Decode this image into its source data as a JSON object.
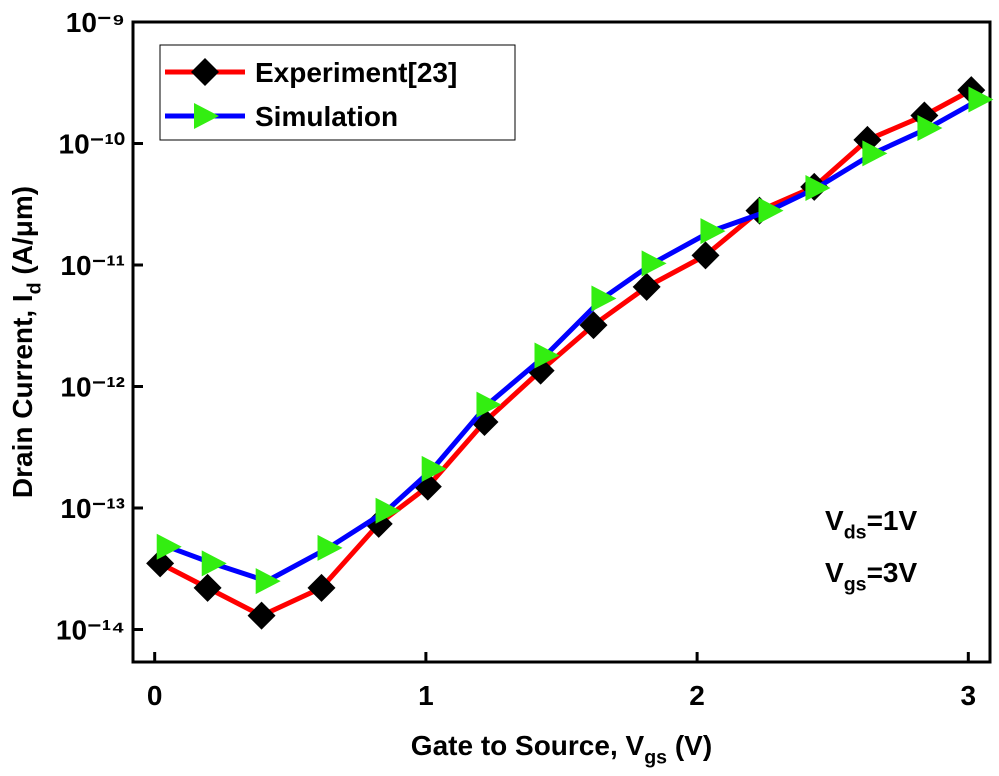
{
  "chart_data": {
    "type": "line",
    "x_label": [
      "Gate to Source, V",
      "gs",
      " (V)"
    ],
    "y_label": [
      "Drain Current, I",
      "d",
      " (A/μm)"
    ],
    "annotations": [
      [
        "V",
        "ds",
        "=1V"
      ],
      [
        "V",
        "gs",
        "=3V"
      ]
    ],
    "log_y": true,
    "legend": "top-left",
    "xlim": [
      -0.08,
      3.08
    ],
    "ylim": [
      5.4e-15,
      1e-09
    ],
    "xticks": [
      0,
      1,
      2,
      3
    ],
    "yticks": [
      {
        "value": 1e-14,
        "label": "10⁻¹⁴"
      },
      {
        "value": 1e-13,
        "label": "10⁻¹³"
      },
      {
        "value": 1e-12,
        "label": "10⁻¹²"
      },
      {
        "value": 1e-11,
        "label": "10⁻¹¹"
      },
      {
        "value": 1e-10,
        "label": "10⁻¹⁰"
      },
      {
        "value": 1e-09,
        "label": "10⁻⁹"
      }
    ],
    "series": [
      {
        "name": "Experiment[23]",
        "color": "#ff0000",
        "marker_color": "#000000",
        "marker": "diamond",
        "x": [
          0.02,
          0.195,
          0.394,
          0.615,
          0.826,
          1.007,
          1.216,
          1.423,
          1.618,
          1.814,
          2.031,
          2.23,
          2.432,
          2.628,
          2.838,
          3.011
        ],
        "values": [
          3.5e-14,
          2.2e-14,
          1.3e-14,
          2.2e-14,
          7.4e-14,
          1.5e-13,
          5.1e-13,
          1.35e-12,
          3.2e-12,
          6.6e-12,
          1.2e-11,
          2.8e-11,
          4.4e-11,
          1.07e-10,
          1.7e-10,
          2.75e-10
        ]
      },
      {
        "name": "Simulation",
        "color": "#0000ff",
        "marker_color": "#33ee11",
        "marker": "triangle-right",
        "x": [
          0.048,
          0.214,
          0.413,
          0.641,
          0.855,
          1.025,
          1.227,
          1.441,
          1.651,
          1.836,
          2.053,
          2.267,
          2.44,
          2.65,
          2.853,
          3.041
        ],
        "values": [
          4.8e-14,
          3.5e-14,
          2.5e-14,
          4.7e-14,
          9.5e-14,
          2.1e-13,
          7.1e-13,
          1.8e-12,
          5.3e-12,
          1.03e-11,
          1.9e-11,
          2.8e-11,
          4.3e-11,
          8.3e-11,
          1.34e-10,
          2.3e-10
        ]
      }
    ]
  }
}
